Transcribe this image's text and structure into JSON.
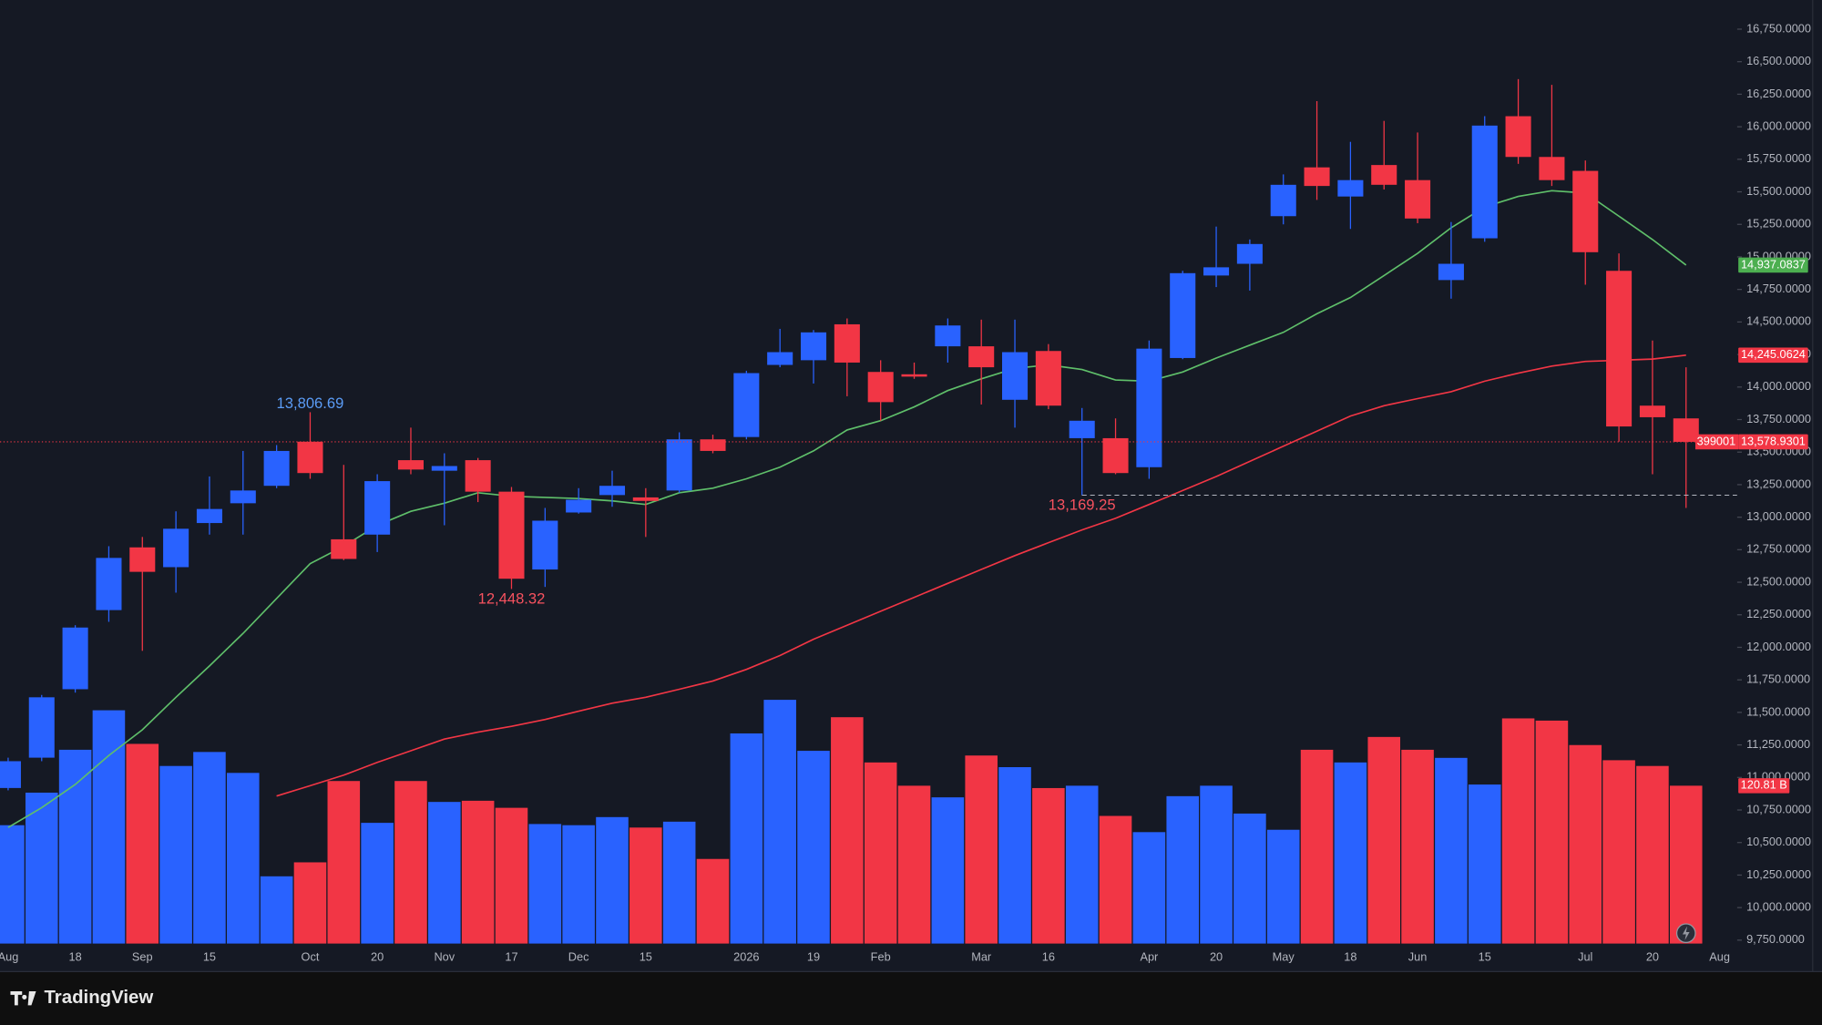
{
  "chart_data": {
    "type": "candlestick",
    "open": [
      10919,
      11152,
      11678,
      12286,
      12768,
      12616,
      12955,
      13107,
      13241,
      13580,
      12830,
      12866,
      13438,
      13357,
      13438,
      13196,
      12598,
      13036,
      13170,
      13152,
      13205,
      13598,
      13616,
      14170,
      14206,
      14482,
      14116,
      14098,
      14313,
      14313,
      13902,
      14277,
      13607,
      13607,
      13384,
      14223,
      14857,
      14947,
      15313,
      15688,
      15464,
      15706,
      15590,
      14822,
      15143,
      16081,
      15768,
      15661,
      14893,
      13857,
      13759
    ],
    "high": [
      11152,
      11634,
      12170,
      12777,
      12848,
      13045,
      13313,
      13509,
      13554,
      13806.69,
      13402,
      13330,
      13688,
      13491,
      13455,
      13232,
      13071,
      13223,
      13357,
      13223,
      13652,
      13634,
      14125,
      14447,
      14438,
      14527,
      14206,
      14188,
      14527,
      14518,
      14518,
      14330,
      13839,
      13759,
      14357,
      14893,
      15233,
      15134,
      15634,
      16197,
      15884,
      16045,
      15956,
      15268,
      16081,
      16366,
      16322,
      15741,
      15027,
      14357,
      14152
    ],
    "low": [
      10901,
      11125,
      11652,
      12196,
      11973,
      12420,
      12866,
      12866,
      13223,
      13295,
      12670,
      12732,
      13330,
      12938,
      13116,
      12448.32,
      12464,
      13027,
      13080,
      12848,
      13188,
      13491,
      13598,
      14152,
      14027,
      13929,
      13741,
      14063,
      14188,
      13866,
      13688,
      13830,
      13169.25,
      13330,
      13295,
      14214,
      14768,
      14741,
      15250,
      15438,
      15215,
      15518,
      15259,
      14679,
      15116,
      15715,
      15545,
      14786,
      13580,
      13330,
      13071
    ],
    "close": [
      11125,
      11616,
      12152,
      12687,
      12580,
      12911,
      13063,
      13205,
      13509,
      13339,
      12679,
      13277,
      13366,
      13393,
      13196,
      12527,
      12973,
      13134,
      13241,
      13125,
      13598,
      13509,
      14107,
      14268,
      14420,
      14188,
      13884,
      14080,
      14473,
      14152,
      14268,
      13857,
      13741,
      13339,
      14295,
      14875,
      14920,
      15099,
      15554,
      15545,
      15590,
      15554,
      15295,
      14947,
      16009,
      15768,
      15590,
      15036,
      13697,
      13768,
      13578.93
    ],
    "volume": [
      90.6,
      115.5,
      148.3,
      178.5,
      152.8,
      135.9,
      146.6,
      130.6,
      51.5,
      62.2,
      124.4,
      92.4,
      124.4,
      108.4,
      109.3,
      103.9,
      91.5,
      90.6,
      96.8,
      88.8,
      93.3,
      64.8,
      160.8,
      186.5,
      147.5,
      173.2,
      138.6,
      120.8,
      111.9,
      143.9,
      135.0,
      119.0,
      120.8,
      97.7,
      85.3,
      112.8,
      120.8,
      99.5,
      87.1,
      148.3,
      138.6,
      158.1,
      148.3,
      142.1,
      121.7,
      172.3,
      170.6,
      151.9,
      140.3,
      135.9,
      120.81
    ],
    "volume_ylim": [
      0,
      200
    ],
    "volume_last_label": "120.81 B",
    "up_color": "#2962ff",
    "down_color": "#f23645",
    "lines": [
      {
        "color": "#5fbf6a",
        "values": [
          10616,
          10768,
          10946,
          11169,
          11366,
          11616,
          11857,
          12107,
          12375,
          12643,
          12777,
          12937,
          13045,
          13107,
          13188,
          13161,
          13152,
          13143,
          13125,
          13098,
          13188,
          13223,
          13295,
          13384,
          13509,
          13670,
          13741,
          13848,
          13973,
          14063,
          14143,
          14170,
          14134,
          14054,
          14045,
          14116,
          14223,
          14322,
          14420,
          14563,
          14688,
          14857,
          15027,
          15224,
          15384,
          15465,
          15509,
          15491,
          15313,
          15134,
          14937.0837
        ]
      },
      {
        "color": "#f23645",
        "values": [
          null,
          null,
          null,
          null,
          null,
          null,
          null,
          null,
          10857,
          10937,
          11018,
          11116,
          11205,
          11295,
          11348,
          11393,
          11446,
          11509,
          11571,
          11616,
          11678,
          11741,
          11830,
          11937,
          12062,
          12170,
          12277,
          12384,
          12491,
          12598,
          12705,
          12804,
          12902,
          12991,
          13098,
          13205,
          13313,
          13429,
          13545,
          13661,
          13777,
          13857,
          13911,
          13964,
          14045,
          14107,
          14161,
          14197,
          14206,
          14215,
          14245.0624
        ]
      }
    ],
    "ylim": [
      9723,
      16974
    ],
    "yticks": [
      {
        "value": 9750,
        "label": "9,750.0000"
      },
      {
        "value": 10000,
        "label": "10,000.0000"
      },
      {
        "value": 10250,
        "label": "10,250.0000"
      },
      {
        "value": 10500,
        "label": "10,500.0000"
      },
      {
        "value": 10750,
        "label": "10,750.0000"
      },
      {
        "value": 11000,
        "label": "11,000.0000"
      },
      {
        "value": 11250,
        "label": "11,250.0000"
      },
      {
        "value": 11500,
        "label": "11,500.0000"
      },
      {
        "value": 11750,
        "label": "11,750.0000"
      },
      {
        "value": 12000,
        "label": "12,000.0000"
      },
      {
        "value": 12250,
        "label": "12,250.0000"
      },
      {
        "value": 12500,
        "label": "12,500.0000"
      },
      {
        "value": 12750,
        "label": "12,750.0000"
      },
      {
        "value": 13000,
        "label": "13,000.0000"
      },
      {
        "value": 13250,
        "label": "13,250.0000"
      },
      {
        "value": 13500,
        "label": "13,500.0000"
      },
      {
        "value": 13750,
        "label": "13,750.0000"
      },
      {
        "value": 14000,
        "label": "14,000.0000"
      },
      {
        "value": 14250,
        "label": "14,250.0000"
      },
      {
        "value": 14500,
        "label": "14,500.0000"
      },
      {
        "value": 14750,
        "label": "14,750.0000"
      },
      {
        "value": 15000,
        "label": "15,000.0000"
      },
      {
        "value": 15250,
        "label": "15,250.0000"
      },
      {
        "value": 15500,
        "label": "15,500.0000"
      },
      {
        "value": 15750,
        "label": "15,750.0000"
      },
      {
        "value": 16000,
        "label": "16,000.0000"
      },
      {
        "value": 16250,
        "label": "16,250.0000"
      },
      {
        "value": 16500,
        "label": "16,500.0000"
      },
      {
        "value": 16750,
        "label": "16,750.0000"
      }
    ],
    "xticks": [
      {
        "value": 0,
        "label": "Aug"
      },
      {
        "value": 2,
        "label": "18"
      },
      {
        "value": 4,
        "label": "Sep"
      },
      {
        "value": 6,
        "label": "15"
      },
      {
        "value": 9,
        "label": "Oct"
      },
      {
        "value": 11,
        "label": "20"
      },
      {
        "value": 13,
        "label": "Nov"
      },
      {
        "value": 15,
        "label": "17"
      },
      {
        "value": 17,
        "label": "Dec"
      },
      {
        "value": 19,
        "label": "15"
      },
      {
        "value": 22,
        "label": "2026"
      },
      {
        "value": 24,
        "label": "19"
      },
      {
        "value": 26,
        "label": "Feb"
      },
      {
        "value": 29,
        "label": "Mar"
      },
      {
        "value": 31,
        "label": "16"
      },
      {
        "value": 34,
        "label": "Apr"
      },
      {
        "value": 36,
        "label": "20"
      },
      {
        "value": 38,
        "label": "May"
      },
      {
        "value": 40,
        "label": "18"
      },
      {
        "value": 42,
        "label": "Jun"
      },
      {
        "value": 44,
        "label": "15"
      },
      {
        "value": 47,
        "label": "Jul"
      },
      {
        "value": 49,
        "label": "20"
      },
      {
        "value": 51,
        "label": "Aug"
      }
    ],
    "annotations": [
      {
        "label": "13,806.69",
        "value": 13806.69,
        "index": 9,
        "color": "#5b9cf6",
        "position": "above"
      },
      {
        "label": "12,448.32",
        "value": 12448.32,
        "index": 15,
        "color": "#f7525f",
        "position": "below"
      },
      {
        "label": "13,169.25",
        "value": 13169.25,
        "index": 32,
        "color": "#f7525f",
        "position": "below"
      }
    ],
    "price_tags": [
      {
        "label": "14,937.0837",
        "value": 14937.0837,
        "color": "#4caf50"
      },
      {
        "label": "14,245.0624",
        "value": 14245.0624,
        "color": "#f23645"
      },
      {
        "label": "13,578.9301",
        "value": 13578.93,
        "color": "#f23645"
      }
    ],
    "countdown": "399001"
  },
  "footer": {
    "brand": "TradingView"
  }
}
